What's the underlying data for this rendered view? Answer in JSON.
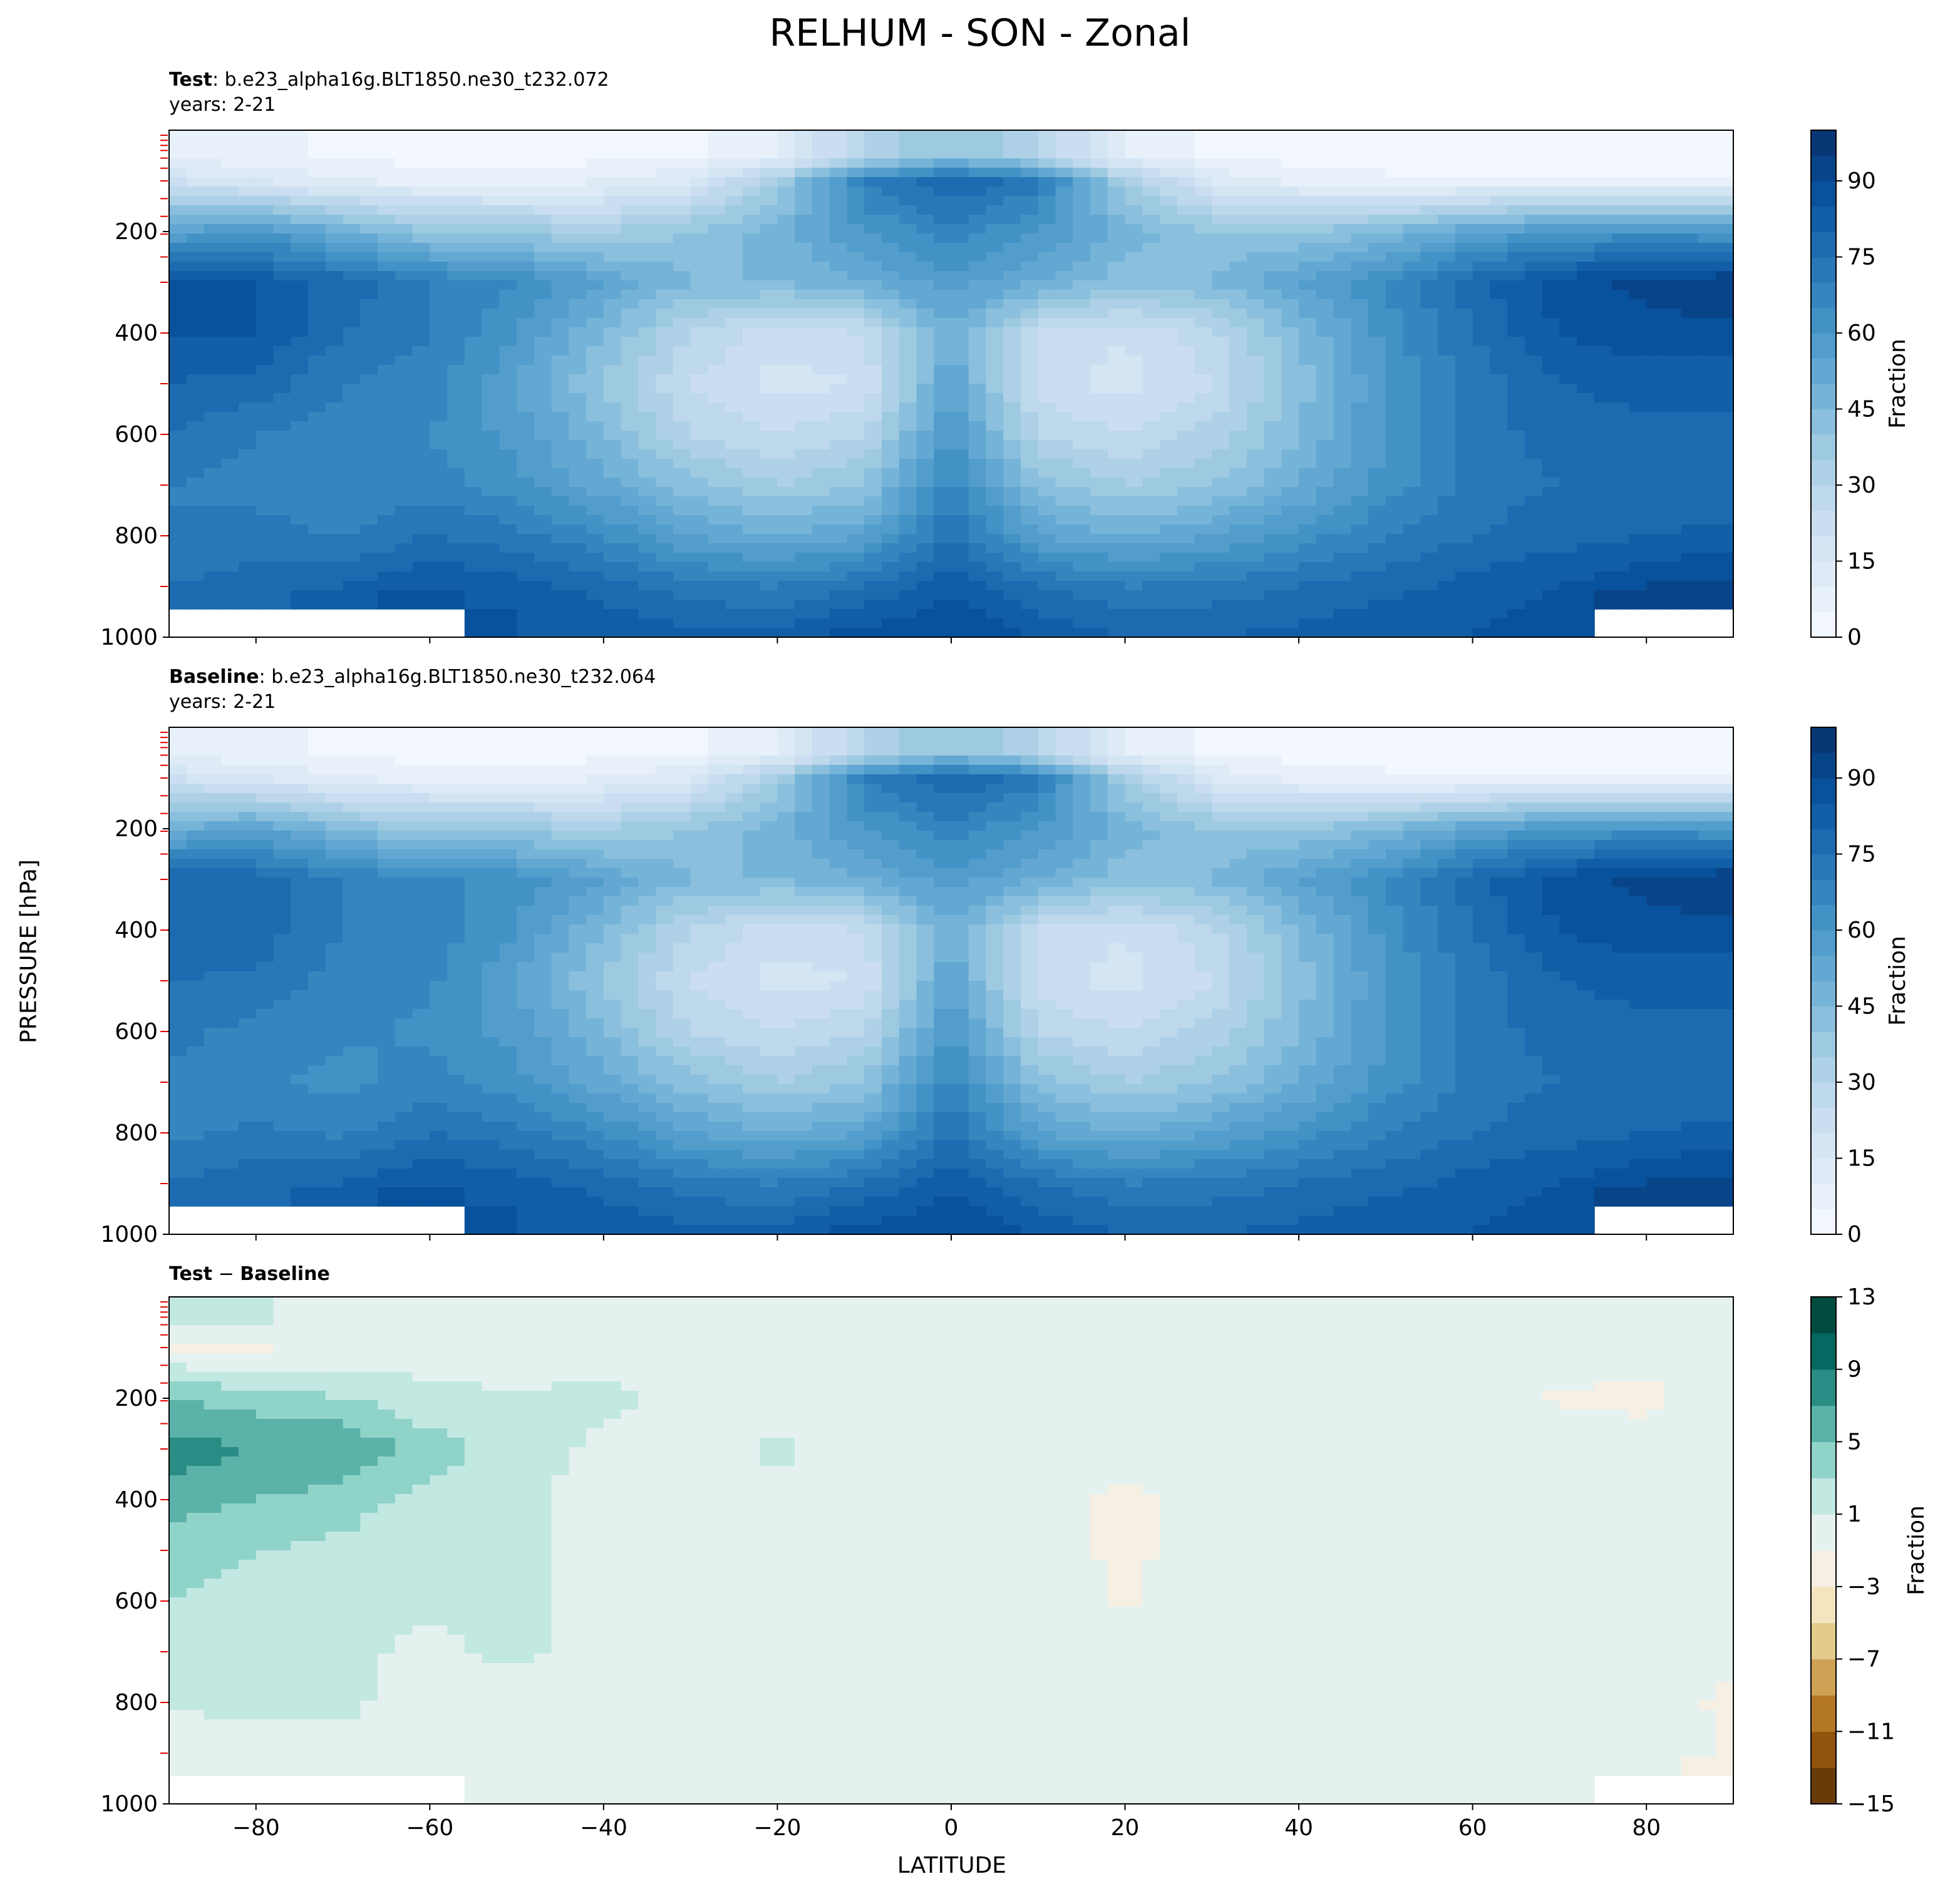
{
  "title": "RELHUM - SON - Zonal",
  "ylabel": "PRESSURE [hPa]",
  "xlabel": "LATITUDE",
  "panels": {
    "test": {
      "label": "Test",
      "case": ": b.e23_alpha16g.BLT1850.ne30_t232.072",
      "years": "years: 2-21"
    },
    "baseline": {
      "label": "Baseline",
      "case": ": b.e23_alpha16g.BLT1850.ne30_t232.064",
      "years": "years: 2-21"
    },
    "diff": {
      "label_a": "Test",
      "sep": " − ",
      "label_b": "Baseline"
    }
  },
  "chart_data": [
    {
      "type": "heatmap",
      "title": "Test : b.e23_alpha16g.BLT1850.ne30_t232.072",
      "subtitle": "years: 2-21",
      "xlabel": "LATITUDE",
      "ylabel": "PRESSURE [hPa]",
      "xlim": [
        -90,
        90
      ],
      "ylim": [
        1000,
        0
      ],
      "x_ticks": [
        -80,
        -60,
        -40,
        -20,
        0,
        20,
        40,
        60,
        80
      ],
      "y_ticks": [
        200,
        400,
        600,
        800,
        1000
      ],
      "colorbar": {
        "label": "Fraction",
        "ticks": [
          0,
          15,
          30,
          45,
          60,
          75,
          90
        ],
        "range": [
          0,
          100
        ],
        "colormap": "Blues"
      },
      "lat": [
        -90,
        -80,
        -70,
        -60,
        -50,
        -40,
        -30,
        -20,
        -10,
        0,
        10,
        20,
        30,
        40,
        50,
        60,
        70,
        80,
        90
      ],
      "lev": [
        50,
        100,
        200,
        300,
        400,
        500,
        600,
        700,
        800,
        900,
        1000
      ],
      "values": [
        [
          8,
          6,
          4,
          3,
          3,
          3,
          4,
          10,
          30,
          40,
          30,
          10,
          4,
          3,
          3,
          3,
          3,
          3,
          3
        ],
        [
          20,
          15,
          10,
          8,
          8,
          10,
          15,
          35,
          70,
          80,
          72,
          35,
          15,
          8,
          6,
          5,
          5,
          5,
          5
        ],
        [
          55,
          60,
          50,
          40,
          38,
          35,
          40,
          48,
          60,
          68,
          60,
          48,
          40,
          40,
          45,
          55,
          60,
          62,
          60
        ],
        [
          88,
          85,
          78,
          70,
          65,
          55,
          45,
          45,
          50,
          58,
          50,
          42,
          45,
          55,
          65,
          78,
          88,
          92,
          95
        ],
        [
          85,
          85,
          75,
          70,
          60,
          45,
          30,
          22,
          25,
          50,
          25,
          20,
          28,
          45,
          62,
          75,
          85,
          88,
          88
        ],
        [
          80,
          78,
          70,
          68,
          55,
          40,
          25,
          18,
          20,
          55,
          22,
          18,
          25,
          42,
          60,
          72,
          80,
          82,
          82
        ],
        [
          75,
          70,
          68,
          65,
          58,
          45,
          30,
          25,
          30,
          60,
          30,
          25,
          32,
          45,
          60,
          72,
          78,
          78,
          78
        ],
        [
          70,
          68,
          65,
          68,
          62,
          52,
          42,
          35,
          40,
          68,
          42,
          35,
          40,
          50,
          62,
          72,
          75,
          75,
          75
        ],
        [
          70,
          72,
          70,
          75,
          72,
          65,
          55,
          50,
          55,
          75,
          55,
          50,
          55,
          62,
          70,
          75,
          78,
          80,
          82
        ],
        [
          75,
          78,
          80,
          85,
          82,
          78,
          72,
          70,
          75,
          85,
          75,
          70,
          72,
          75,
          78,
          82,
          85,
          90,
          92
        ],
        [
          null,
          null,
          null,
          null,
          85,
          85,
          82,
          82,
          88,
          90,
          85,
          80,
          80,
          82,
          85,
          85,
          88,
          null,
          null
        ]
      ]
    },
    {
      "type": "heatmap",
      "title": "Baseline : b.e23_alpha16g.BLT1850.ne30_t232.064",
      "subtitle": "years: 2-21",
      "xlabel": "LATITUDE",
      "ylabel": "PRESSURE [hPa]",
      "xlim": [
        -90,
        90
      ],
      "ylim": [
        1000,
        0
      ],
      "x_ticks": [
        -80,
        -60,
        -40,
        -20,
        0,
        20,
        40,
        60,
        80
      ],
      "y_ticks": [
        200,
        400,
        600,
        800,
        1000
      ],
      "colorbar": {
        "label": "Fraction",
        "ticks": [
          0,
          15,
          30,
          45,
          60,
          75,
          90
        ],
        "range": [
          0,
          100
        ],
        "colormap": "Blues"
      },
      "lat": [
        -90,
        -80,
        -70,
        -60,
        -50,
        -40,
        -30,
        -20,
        -10,
        0,
        10,
        20,
        30,
        40,
        50,
        60,
        70,
        80,
        90
      ],
      "lev": [
        50,
        100,
        200,
        300,
        400,
        500,
        600,
        700,
        800,
        900,
        1000
      ],
      "values": [
        [
          8,
          6,
          4,
          3,
          3,
          3,
          4,
          10,
          30,
          40,
          30,
          10,
          4,
          3,
          3,
          3,
          3,
          3,
          3
        ],
        [
          20,
          15,
          10,
          8,
          8,
          10,
          15,
          35,
          70,
          80,
          72,
          35,
          15,
          8,
          6,
          5,
          5,
          5,
          5
        ],
        [
          50,
          55,
          45,
          38,
          38,
          35,
          40,
          48,
          60,
          68,
          60,
          48,
          40,
          40,
          45,
          55,
          60,
          62,
          60
        ],
        [
          80,
          78,
          70,
          66,
          63,
          55,
          45,
          45,
          50,
          58,
          50,
          42,
          45,
          55,
          65,
          78,
          88,
          92,
          95
        ],
        [
          78,
          78,
          70,
          68,
          60,
          45,
          30,
          22,
          25,
          50,
          25,
          20,
          28,
          45,
          62,
          75,
          85,
          88,
          88
        ],
        [
          75,
          74,
          67,
          66,
          55,
          40,
          25,
          18,
          20,
          55,
          22,
          18,
          25,
          42,
          60,
          72,
          80,
          82,
          82
        ],
        [
          72,
          68,
          66,
          64,
          58,
          45,
          30,
          25,
          30,
          60,
          30,
          25,
          32,
          45,
          60,
          72,
          78,
          78,
          78
        ],
        [
          68,
          66,
          63,
          67,
          62,
          52,
          42,
          35,
          40,
          68,
          42,
          35,
          40,
          50,
          62,
          72,
          75,
          75,
          75
        ],
        [
          69,
          71,
          69,
          75,
          72,
          65,
          55,
          50,
          55,
          75,
          55,
          50,
          55,
          62,
          70,
          75,
          78,
          80,
          82
        ],
        [
          75,
          78,
          80,
          85,
          82,
          78,
          72,
          70,
          75,
          85,
          75,
          70,
          72,
          75,
          78,
          82,
          85,
          90,
          92
        ],
        [
          null,
          null,
          null,
          null,
          85,
          85,
          82,
          82,
          88,
          90,
          85,
          80,
          80,
          82,
          85,
          85,
          88,
          null,
          null
        ]
      ]
    },
    {
      "type": "heatmap",
      "title": "Test − Baseline",
      "xlabel": "LATITUDE",
      "ylabel": "PRESSURE [hPa]",
      "xlim": [
        -90,
        90
      ],
      "ylim": [
        1000,
        0
      ],
      "x_ticks": [
        -80,
        -60,
        -40,
        -20,
        0,
        20,
        40,
        60,
        80
      ],
      "y_ticks": [
        200,
        400,
        600,
        800,
        1000
      ],
      "colorbar": {
        "label": "Fraction",
        "ticks": [
          -15,
          -11,
          -7,
          -3,
          1,
          5,
          9,
          13
        ],
        "range": [
          -15,
          13
        ],
        "colormap": "BrBG"
      },
      "lat": [
        -90,
        -80,
        -70,
        -60,
        -50,
        -40,
        -30,
        -20,
        -10,
        0,
        10,
        20,
        30,
        40,
        50,
        60,
        70,
        80,
        90
      ],
      "lev": [
        50,
        100,
        200,
        300,
        400,
        500,
        600,
        700,
        800,
        900,
        1000
      ],
      "values": [
        [
          1.5,
          1.2,
          0.5,
          0,
          0,
          0,
          0,
          0,
          0,
          0,
          0,
          0,
          0,
          0,
          0,
          0,
          0,
          0,
          0
        ],
        [
          -1.5,
          -1.2,
          -0.5,
          0,
          0,
          0,
          0,
          0,
          0,
          0,
          0,
          0,
          0,
          0,
          0,
          0,
          0,
          0,
          0
        ],
        [
          5,
          4,
          3,
          1.5,
          1.2,
          1.5,
          0.5,
          0,
          0,
          0,
          0,
          0,
          0,
          0,
          0,
          -0.5,
          -1.2,
          -1.5,
          0
        ],
        [
          8,
          7,
          7,
          4,
          2,
          0.5,
          0,
          1.5,
          0,
          0,
          0,
          0,
          0,
          0,
          0,
          0,
          0,
          0,
          0
        ],
        [
          6,
          5,
          4,
          2,
          1.5,
          0,
          0,
          0,
          0,
          0,
          0,
          -1.5,
          0,
          0,
          0,
          0,
          0,
          0,
          0
        ],
        [
          4,
          3,
          2.5,
          1.5,
          1.5,
          0,
          0,
          0,
          0,
          0,
          0,
          -1.5,
          0,
          0,
          0,
          0,
          0,
          0,
          0
        ],
        [
          3,
          2,
          1.5,
          1.5,
          1.5,
          0,
          0,
          0,
          0,
          0,
          0,
          -1.2,
          0,
          0,
          0,
          0,
          0,
          0,
          0
        ],
        [
          2,
          1.5,
          1.5,
          0.5,
          1.5,
          0,
          0,
          0,
          0,
          0,
          0,
          0,
          0,
          0,
          0,
          0,
          0,
          0,
          -0.5
        ],
        [
          1,
          1.5,
          1.5,
          0,
          0,
          0,
          0,
          0,
          0,
          0,
          0,
          0,
          0,
          0,
          0,
          0,
          0,
          0,
          -1.5
        ],
        [
          0.5,
          0,
          0,
          0,
          0,
          0,
          0,
          0,
          0,
          0,
          0,
          0,
          0,
          0,
          0,
          0,
          0,
          0,
          -1.2
        ],
        [
          null,
          null,
          null,
          null,
          0,
          0,
          0,
          0,
          0,
          0,
          0,
          0,
          0,
          0,
          0,
          0,
          0,
          null,
          null
        ]
      ]
    }
  ]
}
